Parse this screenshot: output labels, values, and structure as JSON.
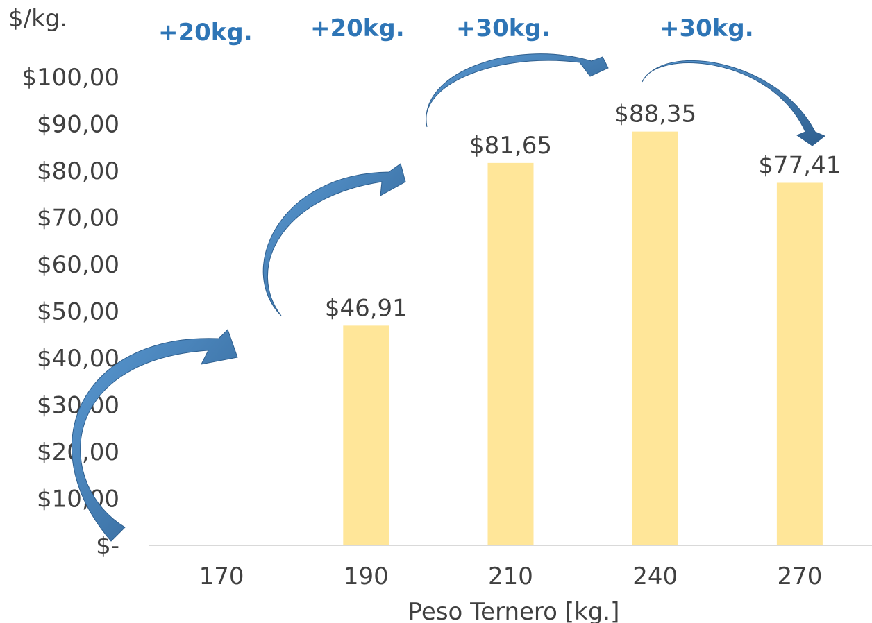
{
  "chart_data": {
    "type": "bar",
    "ylabel": "$/kg.",
    "xlabel": "Peso Ternero [kg.]",
    "categories": [
      "170",
      "190",
      "210",
      "240",
      "270"
    ],
    "values": [
      null,
      46.91,
      81.65,
      88.35,
      77.41
    ],
    "data_labels": [
      "",
      "$46,91",
      "$81,65",
      "$88,35",
      "$77,41"
    ],
    "y_ticks": [
      "$-",
      "$10,00",
      "$20,00",
      "$30,00",
      "$40,00",
      "$50,00",
      "$60,00",
      "$70,00",
      "$80,00",
      "$90,00",
      "$100,00"
    ],
    "ylim": [
      0,
      100
    ],
    "grid": false,
    "annotations": [
      "+20kg.",
      "+20kg.",
      "+30kg.",
      "+30kg."
    ],
    "colors": {
      "bar": "#ffe699",
      "arrow_light": "#5b9bd5",
      "arrow_dark": "#2e5f8f",
      "annotation": "#2e75b6",
      "text": "#404040",
      "axis": "#d9d9d9"
    }
  }
}
